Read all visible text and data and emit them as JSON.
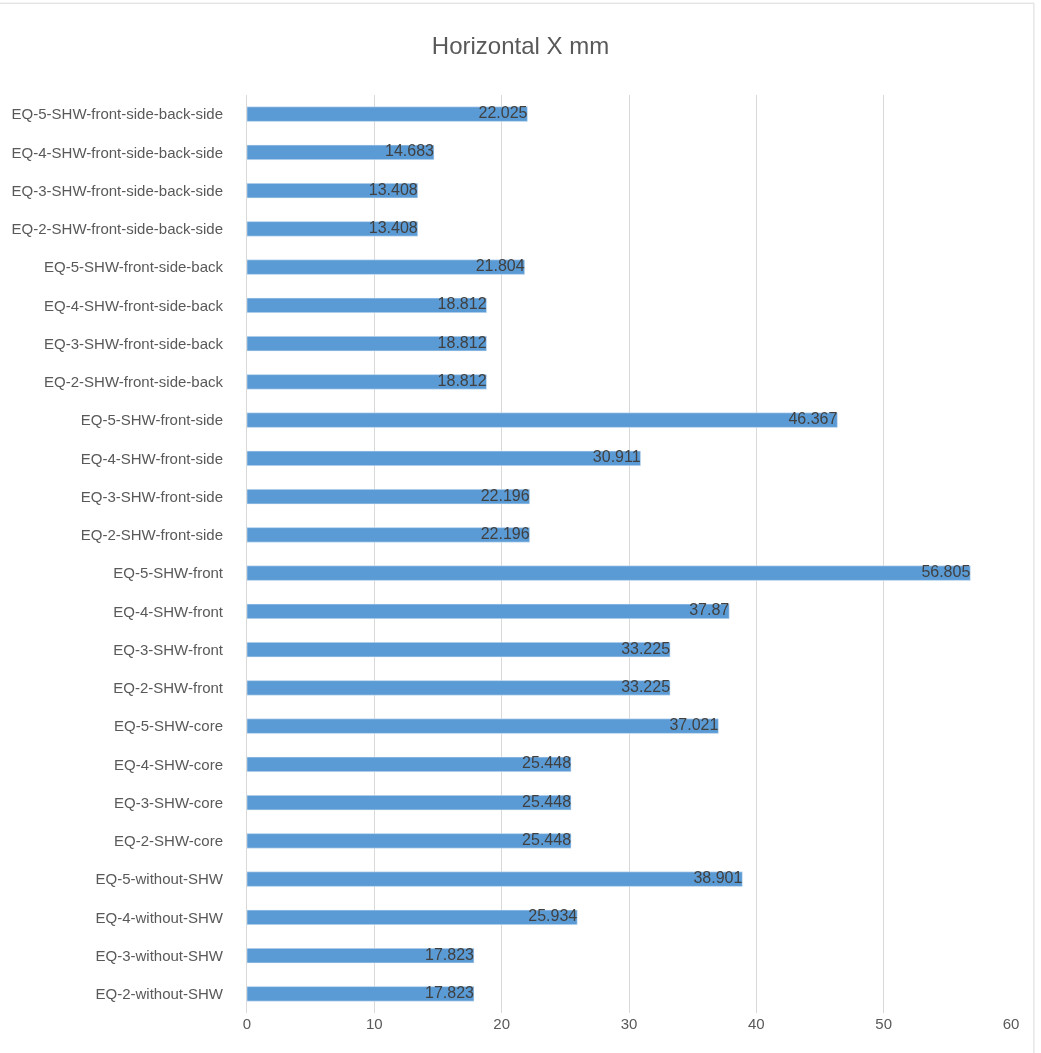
{
  "chart_data": {
    "type": "bar",
    "orientation": "horizontal",
    "title": "Horizontal X mm",
    "categories": [
      "EQ-5-SHW-front-side-back-side",
      "EQ-4-SHW-front-side-back-side",
      "EQ-3-SHW-front-side-back-side",
      "EQ-2-SHW-front-side-back-side",
      "EQ-5-SHW-front-side-back",
      "EQ-4-SHW-front-side-back",
      "EQ-3-SHW-front-side-back",
      "EQ-2-SHW-front-side-back",
      "EQ-5-SHW-front-side",
      "EQ-4-SHW-front-side",
      "EQ-3-SHW-front-side",
      "EQ-2-SHW-front-side",
      "EQ-5-SHW-front",
      "EQ-4-SHW-front",
      "EQ-3-SHW-front",
      "EQ-2-SHW-front",
      "EQ-5-SHW-core",
      "EQ-4-SHW-core",
      "EQ-3-SHW-core",
      "EQ-2-SHW-core",
      "EQ-5-without-SHW",
      "EQ-4-without-SHW",
      "EQ-3-without-SHW",
      "EQ-2-without-SHW"
    ],
    "values": [
      22.025,
      14.683,
      13.408,
      13.408,
      21.804,
      18.812,
      18.812,
      18.812,
      46.367,
      30.911,
      22.196,
      22.196,
      56.805,
      37.87,
      33.225,
      33.225,
      37.021,
      25.448,
      25.448,
      25.448,
      38.901,
      25.934,
      17.823,
      17.823
    ],
    "color": "#5b9bd5",
    "xlim": [
      0,
      60
    ],
    "xticks": [
      0,
      10,
      20,
      30,
      40,
      50,
      60
    ],
    "grid": "x",
    "data_labels": true
  }
}
